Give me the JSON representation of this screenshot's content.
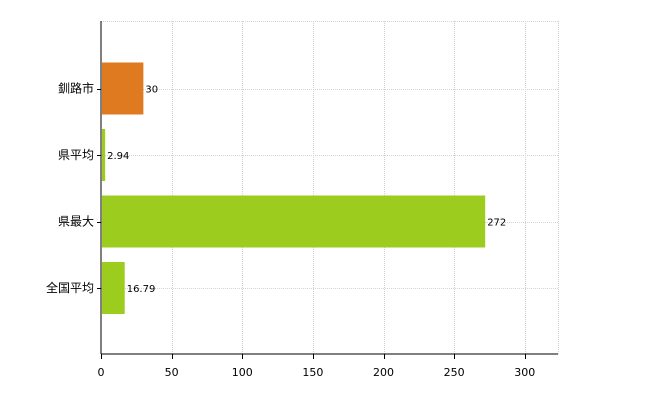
{
  "chart_data": {
    "type": "bar",
    "orientation": "horizontal",
    "categories": [
      "釧路市",
      "県平均",
      "県最大",
      "全国平均"
    ],
    "values": [
      30,
      2.94,
      272,
      16.79
    ],
    "data_labels": [
      "30",
      "2.94",
      "272",
      "16.79"
    ],
    "colors": [
      "#e07a20",
      "#9ccc1e",
      "#9ccc1e",
      "#9ccc1e"
    ],
    "xlim": [
      0,
      325
    ],
    "x_ticks": [
      0,
      50,
      100,
      150,
      200,
      250,
      300
    ],
    "x_tick_labels": [
      "0",
      "50",
      "100",
      "150",
      "200",
      "250",
      "300"
    ],
    "title": "",
    "xlabel": "",
    "ylabel": "",
    "grid": true,
    "legend": "none"
  }
}
